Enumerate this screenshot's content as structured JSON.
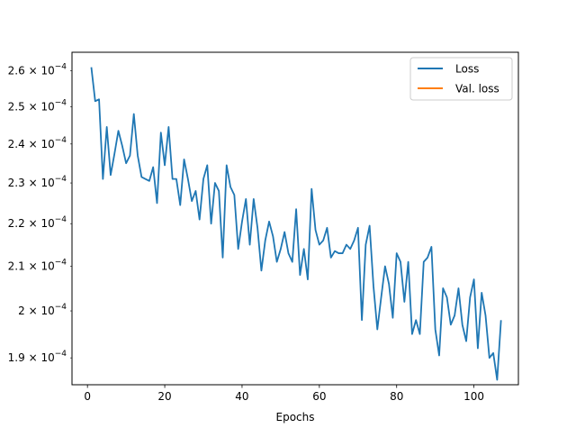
{
  "chart_data": {
    "type": "line",
    "title": "",
    "xlabel": "Epochs",
    "ylabel": "",
    "xlim": [
      -4,
      111.5
    ],
    "ylim": [
      0.0001845,
      0.0002653
    ],
    "y_scale": "log",
    "grid": false,
    "legend_position": "top-right",
    "x_ticks": [
      0,
      20,
      40,
      60,
      80,
      100
    ],
    "x_tick_labels": [
      "0",
      "20",
      "40",
      "60",
      "80",
      "100"
    ],
    "y_ticks": [
      0.00019,
      0.0002,
      0.00021,
      0.00022,
      0.00023,
      0.00024,
      0.00025,
      0.00026
    ],
    "y_tick_labels": [
      {
        "mantissa": "1.9",
        "exp": "−4"
      },
      {
        "mantissa": "2",
        "exp": "−4"
      },
      {
        "mantissa": "2.1",
        "exp": "−4"
      },
      {
        "mantissa": "2.2",
        "exp": "−4"
      },
      {
        "mantissa": "2.3",
        "exp": "−4"
      },
      {
        "mantissa": "2.4",
        "exp": "−4"
      },
      {
        "mantissa": "2.5",
        "exp": "−4"
      },
      {
        "mantissa": "2.6",
        "exp": "−4"
      }
    ],
    "series": [
      {
        "name": "Loss",
        "color": "#1f77b4",
        "x": [
          1,
          2,
          3,
          4,
          5,
          6,
          7,
          8,
          9,
          10,
          11,
          12,
          13,
          14,
          15,
          16,
          17,
          18,
          19,
          20,
          21,
          22,
          23,
          24,
          25,
          26,
          27,
          28,
          29,
          30,
          31,
          32,
          33,
          34,
          35,
          36,
          37,
          38,
          39,
          40,
          41,
          42,
          43,
          44,
          45,
          46,
          47,
          48,
          49,
          50,
          51,
          52,
          53,
          54,
          55,
          56,
          57,
          58,
          59,
          60,
          61,
          62,
          63,
          64,
          65,
          66,
          67,
          68,
          69,
          70,
          71,
          72,
          73,
          74,
          75,
          76,
          77,
          78,
          79,
          80,
          81,
          82,
          83,
          84,
          85,
          86,
          87,
          88,
          89,
          90,
          91,
          92,
          93,
          94,
          95,
          96,
          97,
          98,
          99,
          100,
          101,
          102,
          103,
          104,
          105,
          106,
          107
        ],
        "y": [
          0.000261,
          0.0002515,
          0.000252,
          0.000231,
          0.0002445,
          0.000232,
          0.0002375,
          0.0002435,
          0.0002395,
          0.000235,
          0.000237,
          0.000248,
          0.000237,
          0.0002315,
          0.000231,
          0.0002305,
          0.000234,
          0.000225,
          0.000243,
          0.0002345,
          0.0002445,
          0.000231,
          0.000231,
          0.0002245,
          0.000236,
          0.000231,
          0.0002255,
          0.000228,
          0.000221,
          0.000231,
          0.0002345,
          0.00022,
          0.00023,
          0.000228,
          0.000212,
          0.0002345,
          0.000229,
          0.000227,
          0.000214,
          0.0002205,
          0.000226,
          0.000215,
          0.000226,
          0.000219,
          0.000209,
          0.000216,
          0.0002205,
          0.000217,
          0.000211,
          0.000214,
          0.000218,
          0.000213,
          0.000211,
          0.0002235,
          0.000208,
          0.000214,
          0.000207,
          0.0002285,
          0.0002185,
          0.000215,
          0.000216,
          0.000219,
          0.000212,
          0.0002135,
          0.000213,
          0.000213,
          0.000215,
          0.000214,
          0.000216,
          0.000219,
          0.000198,
          0.000215,
          0.0002195,
          0.0002055,
          0.000196,
          0.000203,
          0.00021,
          0.000206,
          0.0001985,
          0.000213,
          0.000211,
          0.000202,
          0.000211,
          0.000195,
          0.000198,
          0.000195,
          0.000211,
          0.000212,
          0.0002145,
          0.000196,
          0.0001905,
          0.000205,
          0.000203,
          0.000197,
          0.000199,
          0.000205,
          0.000197,
          0.0001935,
          0.000203,
          0.000207,
          0.000192,
          0.000204,
          0.000199,
          0.00019,
          0.000191,
          0.0001855,
          0.000198
        ]
      },
      {
        "name": "Val. loss",
        "color": "#ff7f0e",
        "x": [],
        "y": []
      }
    ]
  }
}
